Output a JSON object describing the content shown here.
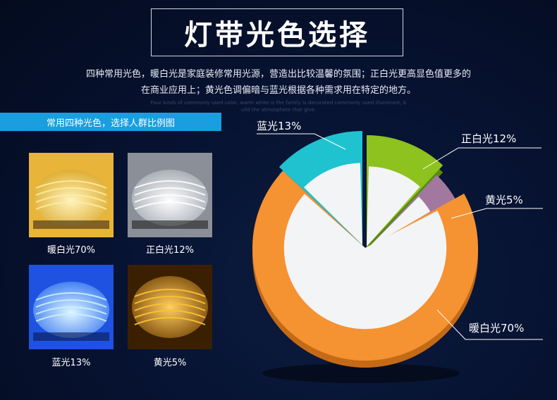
{
  "header": {
    "title": "灯带光色选择",
    "description_line1": "四种常用光色，暖白光是家庭装修常用光源，营造出比较温馨的氛围；正白光更高显色值更多的",
    "description_line2": "在商业应用上；黄光色调偏暗与蓝光根据各种需求用在特定的地方。",
    "english_line1": "Four kinds of commonly used color, warm white is the family is decorated commonly used illuminant, b",
    "english_line2": "uild the atmosphere that give."
  },
  "left_panel": {
    "tag": "常用四种光色，选择人群比例图",
    "swatches": [
      {
        "caption": "暖白光70%",
        "color": "#ffd84a"
      },
      {
        "caption": "正白光12%",
        "color": "#f2f4f8"
      },
      {
        "caption": "蓝光13%",
        "color": "#7fd0ff"
      },
      {
        "caption": "黄光5%",
        "color": "#ffb020"
      }
    ]
  },
  "chart_data": {
    "type": "pie",
    "title": "",
    "slices": [
      {
        "label": "暖白光70%",
        "value": 70,
        "color": "#f59232"
      },
      {
        "label": "蓝光13%",
        "value": 13,
        "color": "#1fc3cf"
      },
      {
        "label": "正白光12%",
        "value": 12,
        "color": "#8dc21f"
      },
      {
        "label": "黄光5%",
        "value": 5,
        "color": "#a2789e"
      }
    ]
  }
}
